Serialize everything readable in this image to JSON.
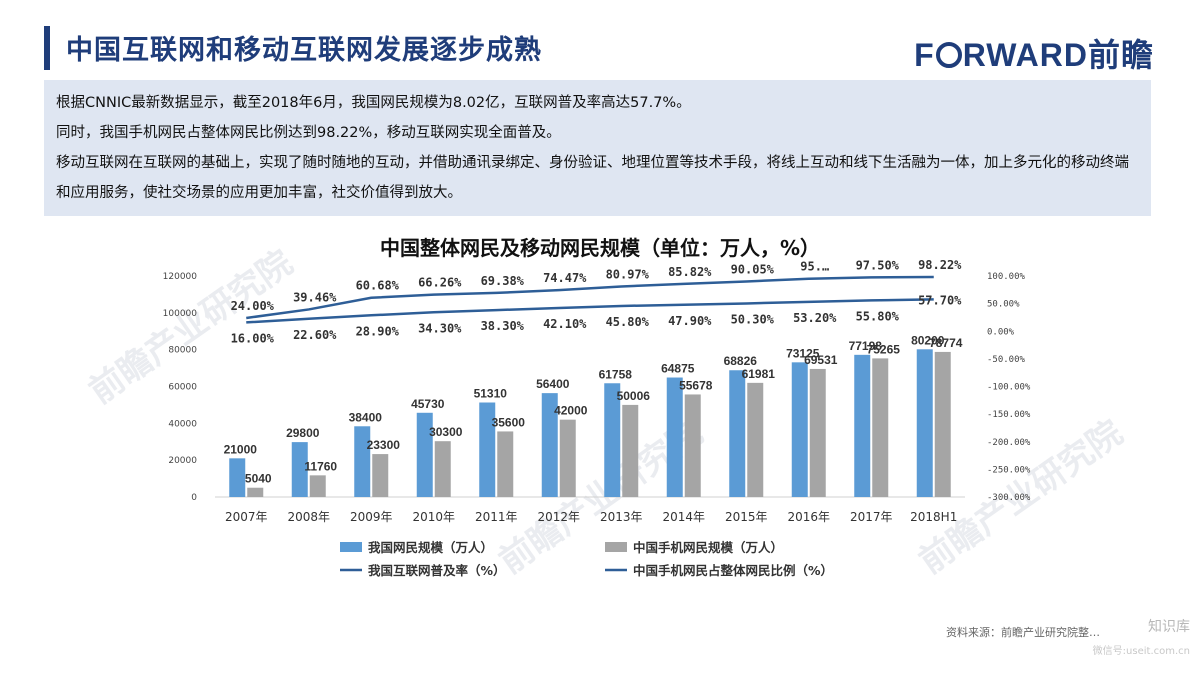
{
  "header": {
    "title": "中国互联网和移动互联网发展逐步成熟",
    "brand_prefix": "F",
    "brand_suffix": "RWARD前瞻"
  },
  "summary": {
    "line1": "根据CNNIC最新数据显示，截至2018年6月，我国网民规模为8.02亿，互联网普及率高达57.7%。",
    "line2": "同时，我国手机网民占整体网民比例达到98.22%，移动互联网实现全面普及。",
    "line3": "移动互联网在互联网的基础上，实现了随时随地的互动，并借助通讯录绑定、身份验证、地理位置等技术手段，将线上互动和线下生活融为一体，加上多元化的移动终端和应用服务，使社交场景的应用更加丰富，社交价值得到放大。"
  },
  "footer": {
    "source": "资料来源：前瞻产业研究院整…",
    "watermark_text": "前瞻产业研究院",
    "corner_label": "知识库",
    "corner_sub": "微信号:useit.com.cn"
  },
  "colors": {
    "title": "#1f3d7a",
    "bar_total": "#5b9bd5",
    "bar_mobile": "#a5a5a5",
    "line": "#2e5e97",
    "summary_bg": "#dfe6f2"
  },
  "chart_data": {
    "type": "bar",
    "title": "中国整体网民及移动网民规模（单位：万人，%）",
    "categories": [
      "2007年",
      "2008年",
      "2009年",
      "2010年",
      "2011年",
      "2012年",
      "2013年",
      "2014年",
      "2015年",
      "2016年",
      "2017年",
      "2018H1"
    ],
    "series": [
      {
        "name": "我国网民规模（万人）",
        "kind": "bar",
        "axis": "left",
        "values": [
          21000,
          29800,
          38400,
          45730,
          51310,
          56400,
          61758,
          64875,
          68826,
          73125,
          77198,
          80200
        ],
        "labels": [
          "21000",
          "29800",
          "38400",
          "45730",
          "51310",
          "56400",
          "61758",
          "64875",
          "68826",
          "73125",
          "77198",
          "80200"
        ]
      },
      {
        "name": "中国手机网民规模（万人）",
        "kind": "bar",
        "axis": "left",
        "values": [
          5040,
          11760,
          23300,
          30300,
          35600,
          42000,
          50006,
          55678,
          61981,
          69531,
          75265,
          78774
        ],
        "labels": [
          "5040",
          "11760",
          "23300",
          "30300",
          "35600",
          "42000",
          "50006",
          "55678",
          "61981",
          "69531",
          "75265",
          "78774"
        ]
      },
      {
        "name": "我国互联网普及率（%）",
        "kind": "line",
        "axis": "right",
        "values": [
          16.0,
          22.6,
          28.9,
          34.3,
          38.3,
          42.1,
          45.8,
          47.9,
          50.3,
          53.2,
          55.8,
          57.7
        ],
        "labels": [
          "16.00%",
          "22.60%",
          "28.90%",
          "34.30%",
          "38.30%",
          "42.10%",
          "45.80%",
          "47.90%",
          "50.30%",
          "53.20%",
          "55.80%",
          "57.70%"
        ]
      },
      {
        "name": "中国手机网民占整体网民比例（%）",
        "kind": "line",
        "axis": "right",
        "values": [
          24.0,
          39.46,
          60.68,
          66.26,
          69.38,
          74.47,
          80.97,
          85.82,
          90.05,
          95.1,
          97.5,
          98.22
        ],
        "labels": [
          "24.00%",
          "39.46%",
          "60.68%",
          "66.26%",
          "69.38%",
          "74.47%",
          "80.97%",
          "85.82%",
          "90.05%",
          "95.…",
          "97.50%",
          "98.22%"
        ]
      }
    ],
    "y_left": {
      "min": 0,
      "max": 120000,
      "ticks": [
        "0",
        "20000",
        "40000",
        "60000",
        "80000",
        "100000",
        "120000"
      ]
    },
    "y_right": {
      "min": -300,
      "max": 100,
      "ticks": [
        "-300.00%",
        "-250.00%",
        "-200.00%",
        "-150.00%",
        "-100.00%",
        "-50.00%",
        "0.00%",
        "50.00%",
        "100.00%"
      ]
    },
    "grid": false,
    "legend_position": "bottom"
  }
}
